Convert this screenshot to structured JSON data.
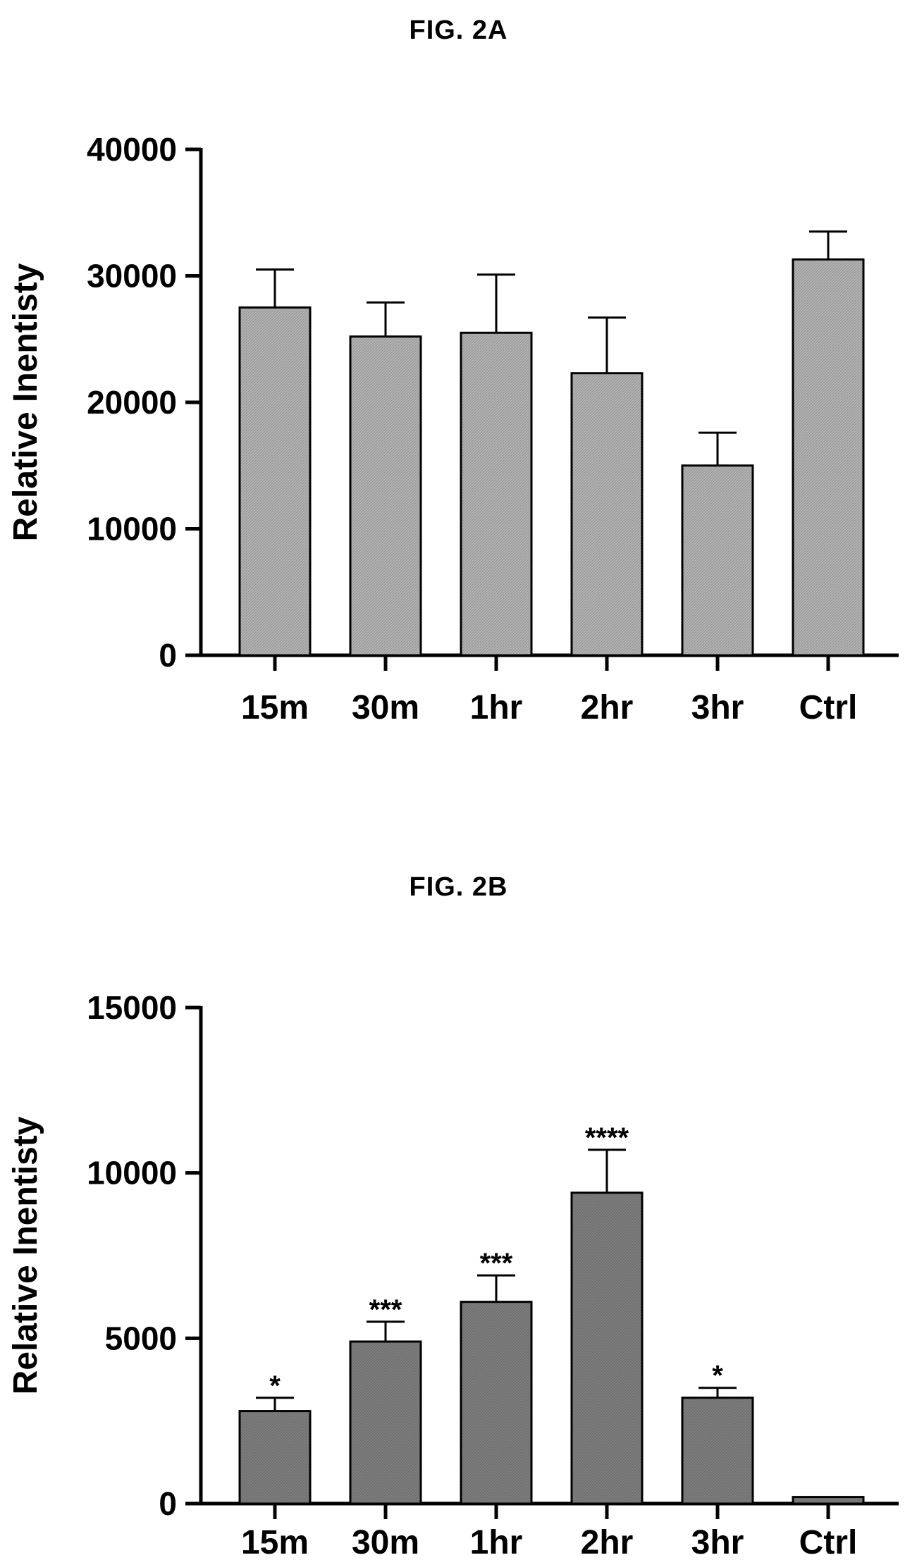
{
  "colors": {
    "bar_a": "#b3b3b3",
    "bar_b": "#7f7f7f",
    "axis": "#000000"
  },
  "chart_data": [
    {
      "type": "bar",
      "title": "FIG. 2A",
      "xlabel": "",
      "ylabel": "Relative Inentisty",
      "categories": [
        "15m",
        "30m",
        "1hr",
        "2hr",
        "3hr",
        "Ctrl"
      ],
      "values": [
        27500,
        25200,
        25500,
        22300,
        15000,
        31300
      ],
      "error_plus": [
        3000,
        2700,
        4600,
        4400,
        2600,
        2200
      ],
      "annotations": [
        "",
        "",
        "",
        "",
        "",
        ""
      ],
      "ylim": [
        0,
        40000
      ],
      "yticks": [
        0,
        10000,
        20000,
        30000,
        40000
      ],
      "ytick_labels": [
        "0",
        "10000",
        "20000",
        "30000",
        "40000"
      ],
      "grid": false,
      "legend": "none"
    },
    {
      "type": "bar",
      "title": "FIG. 2B",
      "xlabel": "",
      "ylabel": "Relative Inentisty",
      "categories": [
        "15m",
        "30m",
        "1hr",
        "2hr",
        "3hr",
        "Ctrl"
      ],
      "values": [
        2800,
        4900,
        6100,
        9400,
        3200,
        200
      ],
      "error_plus": [
        400,
        600,
        800,
        1300,
        300,
        0
      ],
      "annotations": [
        "*",
        "***",
        "***",
        "****",
        "*",
        ""
      ],
      "ylim": [
        0,
        15000
      ],
      "yticks": [
        0,
        5000,
        10000,
        15000
      ],
      "ytick_labels": [
        "0",
        "5000",
        "10000",
        "15000"
      ],
      "grid": false,
      "legend": "none"
    }
  ]
}
